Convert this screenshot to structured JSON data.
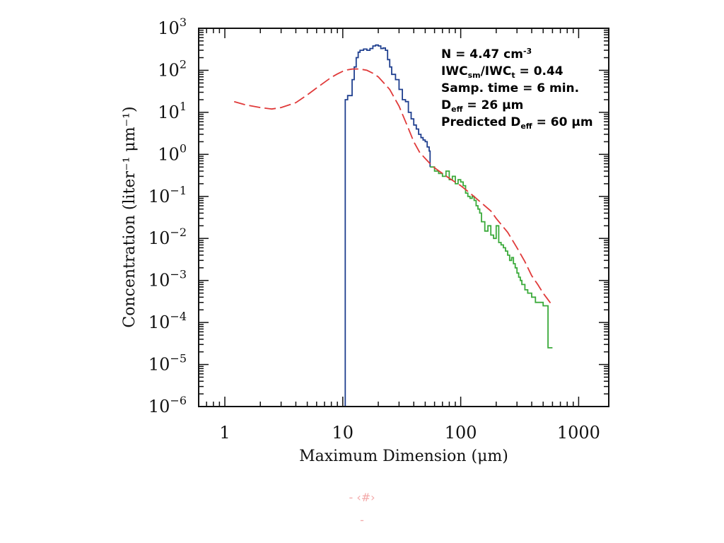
{
  "footer": {
    "line1": "- ‹#›",
    "line2": "-"
  },
  "chart_data": {
    "type": "line",
    "xlabel": "Maximum Dimension (μm)",
    "ylabel": "Concentration (liter⁻¹ μm⁻¹)",
    "xscale": "log",
    "yscale": "log",
    "xlim": [
      0.6,
      1800
    ],
    "ylim": [
      1e-06,
      1000
    ],
    "x_ticks": [
      {
        "value": 1,
        "label": "1"
      },
      {
        "value": 10,
        "label": "10"
      },
      {
        "value": 100,
        "label": "100"
      },
      {
        "value": 1000,
        "label": "1000"
      }
    ],
    "y_ticks": [
      {
        "value": 1e-06,
        "base": "10",
        "exp": "−6"
      },
      {
        "value": 1e-05,
        "base": "10",
        "exp": "−5"
      },
      {
        "value": 0.0001,
        "base": "10",
        "exp": "−4"
      },
      {
        "value": 0.001,
        "base": "10",
        "exp": "−3"
      },
      {
        "value": 0.01,
        "base": "10",
        "exp": "−2"
      },
      {
        "value": 0.1,
        "base": "10",
        "exp": "−1"
      },
      {
        "value": 1,
        "base": "10",
        "exp": "0"
      },
      {
        "value": 10,
        "base": "10",
        "exp": "1"
      },
      {
        "value": 100,
        "base": "10",
        "exp": "2"
      },
      {
        "value": 1000,
        "base": "10",
        "exp": "3"
      }
    ],
    "annotations": [
      {
        "parts": [
          {
            "t": "N = 4.47 cm"
          },
          {
            "t": "-3",
            "sup": true
          }
        ]
      },
      {
        "parts": [
          {
            "t": "IWC"
          },
          {
            "t": "sm",
            "sub": true
          },
          {
            "t": "/IWC"
          },
          {
            "t": "t",
            "sub": true
          },
          {
            "t": " = 0.44"
          }
        ]
      },
      {
        "parts": [
          {
            "t": "Samp. time = 6 min."
          }
        ]
      },
      {
        "parts": [
          {
            "t": "D"
          },
          {
            "t": "eff",
            "sub": true
          },
          {
            "t": " = 26 μm"
          }
        ]
      },
      {
        "parts": [
          {
            "t": "Predicted D"
          },
          {
            "t": "eff",
            "sub": true
          },
          {
            "t": " = 60 μm"
          }
        ]
      }
    ],
    "series": [
      {
        "color": "#1f3f8f",
        "style": "solid",
        "step": true,
        "x": [
          1.6,
          3,
          6,
          10.5,
          10.5,
          11,
          12,
          12.5,
          13,
          13.5,
          14,
          15,
          16,
          17,
          18,
          19,
          20,
          21,
          22,
          23,
          24,
          25,
          26,
          28,
          30,
          32,
          34,
          36,
          38,
          40,
          42,
          44,
          46,
          48,
          50,
          52,
          54,
          55
        ],
        "y": [
          1e-06,
          1e-06,
          1e-06,
          1e-06,
          20,
          25,
          60,
          120,
          200,
          270,
          300,
          320,
          300,
          330,
          380,
          400,
          380,
          330,
          340,
          300,
          180,
          120,
          80,
          60,
          35,
          20,
          18,
          10,
          7,
          5,
          4,
          3,
          2.5,
          2.2,
          2.0,
          1.5,
          1.2,
          0.5
        ]
      },
      {
        "color": "#3aaa3a",
        "style": "solid",
        "step": true,
        "x": [
          55,
          60,
          65,
          70,
          75,
          80,
          85,
          90,
          95,
          100,
          105,
          110,
          115,
          120,
          125,
          130,
          135,
          140,
          145,
          150,
          160,
          170,
          180,
          190,
          200,
          210,
          220,
          230,
          240,
          250,
          260,
          270,
          280,
          290,
          300,
          310,
          320,
          330,
          350,
          370,
          400,
          430,
          460,
          500,
          550,
          600
        ],
        "y": [
          0.5,
          0.4,
          0.35,
          0.3,
          0.4,
          0.25,
          0.3,
          0.2,
          0.25,
          0.22,
          0.18,
          0.12,
          0.1,
          0.09,
          0.1,
          0.08,
          0.06,
          0.05,
          0.04,
          0.025,
          0.015,
          0.02,
          0.012,
          0.01,
          0.02,
          0.008,
          0.007,
          0.006,
          0.005,
          0.004,
          0.003,
          0.0035,
          0.0025,
          0.002,
          0.0015,
          0.0012,
          0.001,
          0.0008,
          0.0006,
          0.0005,
          0.0004,
          0.0003,
          0.0003,
          0.00025,
          2.5e-05,
          2.5e-05
        ]
      },
      {
        "color": "#e03a3a",
        "style": "dashed",
        "step": false,
        "x": [
          1.2,
          1.5,
          2,
          2.5,
          3,
          4,
          5,
          6,
          7,
          8,
          9,
          10,
          11,
          12,
          13,
          14,
          16,
          18,
          20,
          25,
          30,
          35,
          40,
          45,
          50,
          55,
          60,
          70,
          80,
          100,
          120,
          150,
          180,
          200,
          250,
          300,
          350,
          400,
          450,
          500,
          550,
          600
        ],
        "y": [
          18,
          15,
          13,
          12,
          13,
          17,
          26,
          38,
          52,
          68,
          82,
          95,
          103,
          107,
          108,
          107,
          100,
          85,
          70,
          35,
          14,
          5,
          2,
          1.1,
          0.8,
          0.6,
          0.48,
          0.35,
          0.27,
          0.18,
          0.12,
          0.07,
          0.045,
          0.03,
          0.014,
          0.006,
          0.0028,
          0.0013,
          0.0008,
          0.0005,
          0.00035,
          0.00025
        ]
      }
    ]
  }
}
